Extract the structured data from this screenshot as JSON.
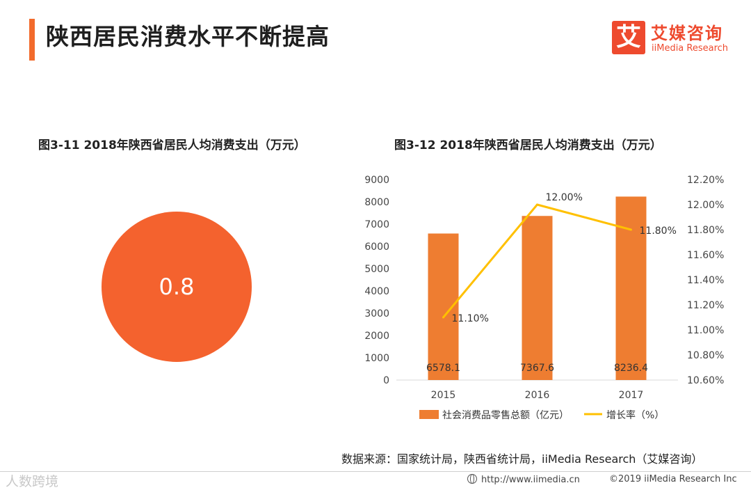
{
  "page": {
    "title": "陕西居民消费水平不断提高",
    "brand_color": "#f26b2c"
  },
  "logo": {
    "mark": "艾",
    "name_cn": "艾媒咨询",
    "name_en": "iiMedia Research",
    "color": "#ee4a2e"
  },
  "figure1": {
    "title": "图3-11 2018年陕西省居民人均消费支出（万元）",
    "value": "0.8",
    "color": "#f4622e"
  },
  "figure2": {
    "title": "图3-12 2018年陕西省居民人均消费支出（万元）"
  },
  "chart_data": {
    "type": "bar",
    "categories": [
      "2015",
      "2016",
      "2017"
    ],
    "series": [
      {
        "name": "社会消费品零售总额（亿元）",
        "type": "bar",
        "axis": "left",
        "values": [
          6578.1,
          7367.6,
          8236.4
        ],
        "labels": [
          "6578.1",
          "7367.6",
          "8236.4"
        ],
        "color": "#ee7d31"
      },
      {
        "name": "增长率（%）",
        "type": "line",
        "axis": "right",
        "values": [
          11.1,
          12.0,
          11.8
        ],
        "labels": [
          "11.10%",
          "12.00%",
          "11.80%"
        ],
        "color": "#ffc000"
      }
    ],
    "y_left": {
      "min": 0,
      "max": 9000,
      "ticks": [
        "0",
        "1000",
        "2000",
        "3000",
        "4000",
        "5000",
        "6000",
        "7000",
        "8000",
        "9000"
      ]
    },
    "y_right": {
      "min": 10.6,
      "max": 12.2,
      "ticks": [
        "10.60%",
        "10.80%",
        "11.00%",
        "11.20%",
        "11.40%",
        "11.60%",
        "11.80%",
        "12.00%",
        "12.20%"
      ]
    },
    "grid": false,
    "legend_position": "bottom"
  },
  "source": {
    "text": "数据来源：国家统计局，陕西省统计局，iiMedia Research（艾媒咨询）"
  },
  "footer": {
    "watermark": "人数跨境",
    "url": "http://www.iimedia.cn",
    "copyright": "©2019  iiMedia Research  Inc"
  }
}
